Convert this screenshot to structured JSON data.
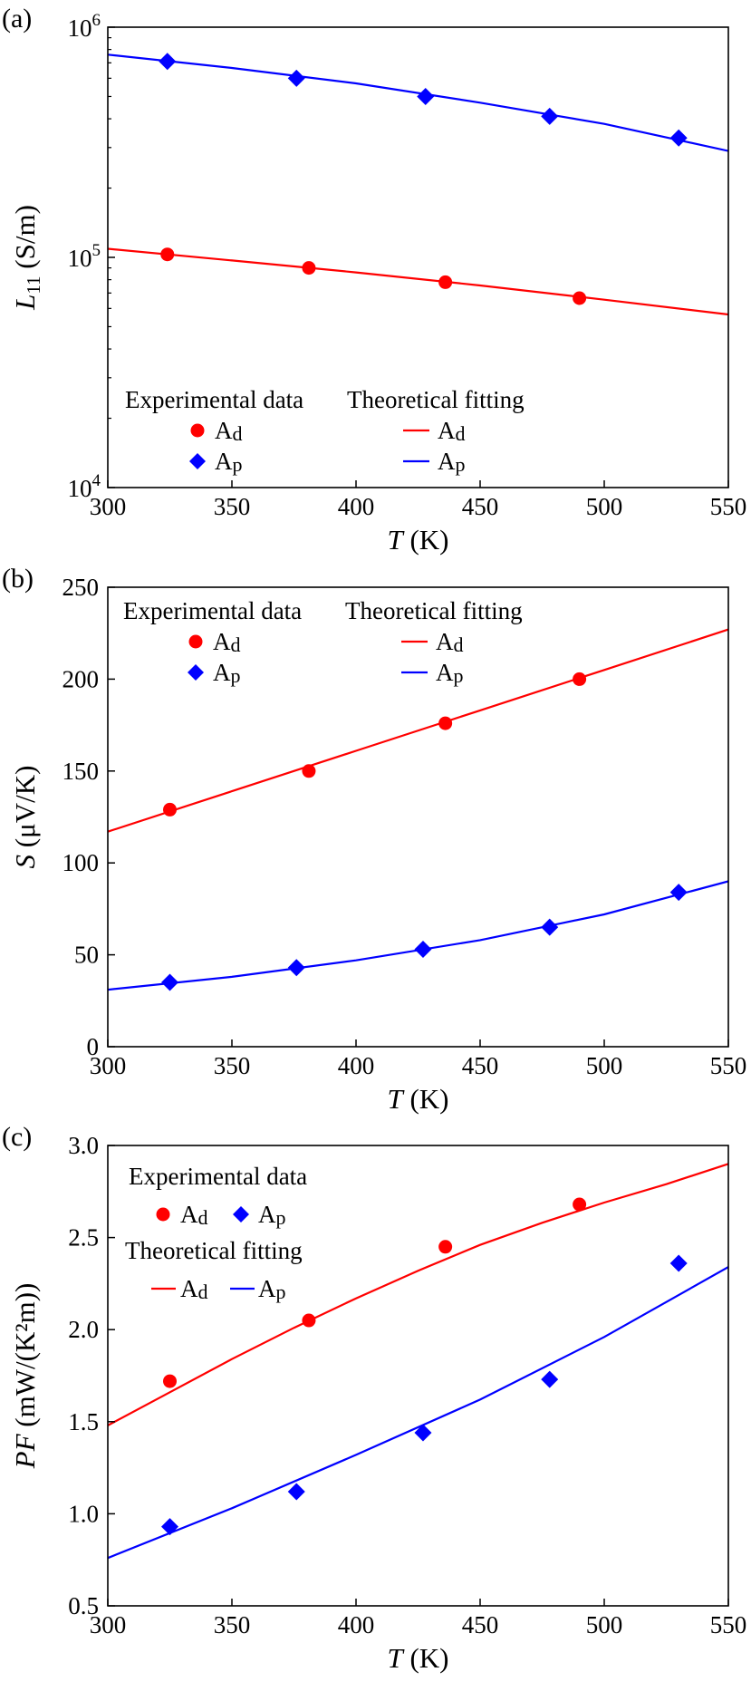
{
  "chart_data": [
    {
      "type": "line",
      "panel_label": "(a)",
      "xlabel": {
        "italic": "T",
        "rest": " (K)"
      },
      "ylabel": {
        "italic": "L",
        "sub": "11",
        "rest": " (S/m)"
      },
      "xlim": [
        300,
        550
      ],
      "xticks": [
        "300",
        "350",
        "400",
        "450",
        "500",
        "550"
      ],
      "yscale": "log",
      "ylim": [
        10000,
        1000000
      ],
      "yticks": [
        {
          "base": "10",
          "exp": "4",
          "value": 10000
        },
        {
          "base": "10",
          "exp": "5",
          "value": 100000
        },
        {
          "base": "10",
          "exp": "6",
          "value": 1000000
        }
      ],
      "legend": {
        "placement": "lower-left",
        "layout": "two-columns",
        "exp_title": "Experimental data",
        "fit_title": "Theoretical fitting",
        "entries": [
          {
            "main": "A",
            "sub": "d"
          },
          {
            "main": "A",
            "sub": "p"
          }
        ]
      },
      "series": [
        {
          "name": "Ad",
          "kind": "experimental",
          "marker": "circle",
          "color": "#ff0000",
          "points": [
            [
              324,
              103000
            ],
            [
              381,
              90000
            ],
            [
              436,
              78000
            ],
            [
              490,
              66500
            ]
          ]
        },
        {
          "name": "Ap",
          "kind": "experimental",
          "marker": "diamond",
          "color": "#0000ff",
          "points": [
            [
              324,
              710000
            ],
            [
              376,
              600000
            ],
            [
              428,
              500000
            ],
            [
              478,
              410000
            ],
            [
              530,
              330000
            ]
          ]
        },
        {
          "name": "Ad",
          "kind": "fit",
          "color": "#ff0000",
          "points": [
            [
              300,
              109000
            ],
            [
              350,
              97000
            ],
            [
              400,
              86000
            ],
            [
              450,
              75500
            ],
            [
              500,
              65500
            ],
            [
              550,
              56500
            ]
          ]
        },
        {
          "name": "Ap",
          "kind": "fit",
          "color": "#0000ff",
          "points": [
            [
              300,
              760000
            ],
            [
              350,
              665000
            ],
            [
              400,
              570000
            ],
            [
              450,
              470000
            ],
            [
              500,
              380000
            ],
            [
              550,
              290000
            ]
          ]
        }
      ]
    },
    {
      "type": "line",
      "panel_label": "(b)",
      "xlabel": {
        "italic": "T",
        "rest": " (K)"
      },
      "ylabel": {
        "italic": "S",
        "sub": "",
        "rest": " (μV/K)"
      },
      "xlim": [
        300,
        550
      ],
      "xticks": [
        "300",
        "350",
        "400",
        "450",
        "500",
        "550"
      ],
      "yscale": "linear",
      "ylim": [
        0,
        250
      ],
      "yticks": [
        {
          "label": "0",
          "value": 0
        },
        {
          "label": "50",
          "value": 50
        },
        {
          "label": "100",
          "value": 100
        },
        {
          "label": "150",
          "value": 150
        },
        {
          "label": "200",
          "value": 200
        },
        {
          "label": "250",
          "value": 250
        }
      ],
      "legend": {
        "placement": "upper-left",
        "layout": "two-columns",
        "exp_title": "Experimental data",
        "fit_title": "Theoretical fitting",
        "entries": [
          {
            "main": "A",
            "sub": "d"
          },
          {
            "main": "A",
            "sub": "p"
          }
        ]
      },
      "series": [
        {
          "name": "Ad",
          "kind": "experimental",
          "marker": "circle",
          "color": "#ff0000",
          "points": [
            [
              325,
              129
            ],
            [
              381,
              150
            ],
            [
              436,
              176
            ],
            [
              490,
              200
            ]
          ]
        },
        {
          "name": "Ap",
          "kind": "experimental",
          "marker": "diamond",
          "color": "#0000ff",
          "points": [
            [
              325,
              35
            ],
            [
              376,
              43
            ],
            [
              427,
              53
            ],
            [
              478,
              65
            ],
            [
              530,
              84
            ]
          ]
        },
        {
          "name": "Ad",
          "kind": "fit",
          "color": "#ff0000",
          "points": [
            [
              300,
              117
            ],
            [
              350,
              139
            ],
            [
              400,
              161
            ],
            [
              450,
              183
            ],
            [
              500,
              205
            ],
            [
              550,
              227
            ]
          ]
        },
        {
          "name": "Ap",
          "kind": "fit",
          "color": "#0000ff",
          "points": [
            [
              300,
              31
            ],
            [
              350,
              38
            ],
            [
              400,
              47
            ],
            [
              450,
              58
            ],
            [
              500,
              72
            ],
            [
              550,
              90
            ]
          ]
        }
      ]
    },
    {
      "type": "line",
      "panel_label": "(c)",
      "xlabel": {
        "italic": "T",
        "rest": " (K)"
      },
      "ylabel": {
        "italic": "PF",
        "sub": "",
        "rest": " (mW/(K²m))"
      },
      "xlim": [
        300,
        550
      ],
      "xticks": [
        "300",
        "350",
        "400",
        "450",
        "500",
        "550"
      ],
      "yscale": "linear",
      "ylim": [
        0.5,
        3.0
      ],
      "yticks": [
        {
          "label": "0.5",
          "value": 0.5
        },
        {
          "label": "1.0",
          "value": 1.0
        },
        {
          "label": "1.5",
          "value": 1.5
        },
        {
          "label": "2.0",
          "value": 2.0
        },
        {
          "label": "2.5",
          "value": 2.5
        },
        {
          "label": "3.0",
          "value": 3.0
        }
      ],
      "legend": {
        "placement": "upper-left",
        "layout": "stacked-rows",
        "exp_title": "Experimental data",
        "fit_title": "Theoretical fitting",
        "entries": [
          {
            "main": "A",
            "sub": "d"
          },
          {
            "main": "A",
            "sub": "p"
          }
        ]
      },
      "series": [
        {
          "name": "Ad",
          "kind": "experimental",
          "marker": "circle",
          "color": "#ff0000",
          "points": [
            [
              325,
              1.72
            ],
            [
              381,
              2.05
            ],
            [
              436,
              2.45
            ],
            [
              490,
              2.68
            ]
          ]
        },
        {
          "name": "Ap",
          "kind": "experimental",
          "marker": "diamond",
          "color": "#0000ff",
          "points": [
            [
              325,
              0.93
            ],
            [
              376,
              1.12
            ],
            [
              427,
              1.44
            ],
            [
              478,
              1.73
            ],
            [
              530,
              2.36
            ]
          ]
        },
        {
          "name": "Ad",
          "kind": "fit",
          "color": "#ff0000",
          "points": [
            [
              300,
              1.48
            ],
            [
              325,
              1.66
            ],
            [
              350,
              1.84
            ],
            [
              375,
              2.01
            ],
            [
              400,
              2.17
            ],
            [
              425,
              2.32
            ],
            [
              450,
              2.46
            ],
            [
              475,
              2.58
            ],
            [
              500,
              2.69
            ],
            [
              525,
              2.79
            ],
            [
              550,
              2.9
            ]
          ]
        },
        {
          "name": "Ap",
          "kind": "fit",
          "color": "#0000ff",
          "points": [
            [
              300,
              0.76
            ],
            [
              350,
              1.03
            ],
            [
              400,
              1.32
            ],
            [
              450,
              1.62
            ],
            [
              500,
              1.96
            ],
            [
              550,
              2.34
            ]
          ]
        }
      ]
    }
  ]
}
